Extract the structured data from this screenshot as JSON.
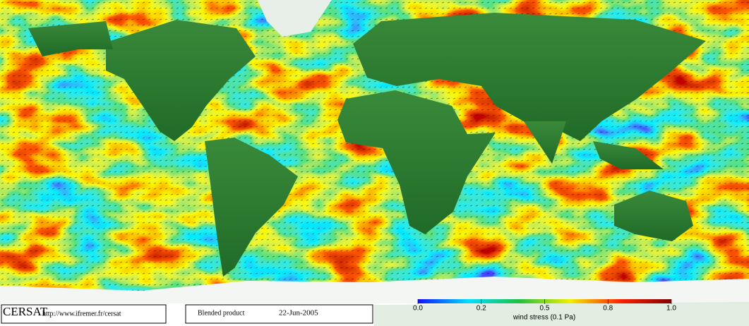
{
  "logo": "CERSAT",
  "url": "http://www.ifremer.fr/cersat",
  "product": "Blended product",
  "date": "22-Jun-2005",
  "colorbar": {
    "label": "wind stress (0.1 Pa)",
    "ticks": [
      {
        "value": 0,
        "label": "0.0"
      },
      0.2,
      0.5,
      0.8,
      {
        "value": 1,
        "label": "1.0"
      }
    ],
    "colors": [
      "#1010ff",
      "#00e0ff",
      "#20c040",
      "#f0f000",
      "#ff2000",
      "#800000"
    ]
  }
}
